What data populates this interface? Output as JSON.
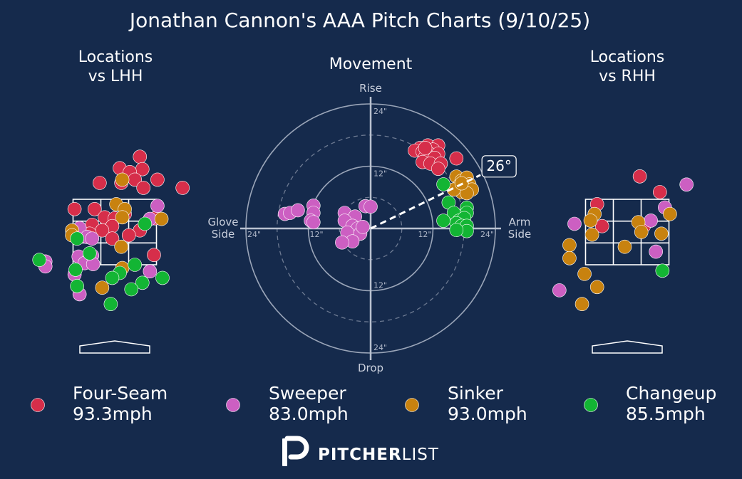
{
  "chart_data": {
    "type": "scatter",
    "title": "Jonathan Cannon's AAA Pitch Charts (9/10/25)",
    "colors": {
      "background": "#152a4c",
      "Four-Seam": "#d62e4a",
      "Sweeper": "#cc5fc2",
      "Sinker": "#c8820f",
      "Changeup": "#13b534"
    },
    "pitch_types": [
      {
        "name": "Four-Seam",
        "speed": "93.3mph",
        "color": "#d62e4a"
      },
      {
        "name": "Sweeper",
        "speed": "83.0mph",
        "color": "#cc5fc2"
      },
      {
        "name": "Sinker",
        "speed": "93.0mph",
        "color": "#c8820f"
      },
      {
        "name": "Changeup",
        "speed": "85.5mph",
        "color": "#13b534"
      }
    ],
    "locations_lhh": {
      "title_line1": "Locations",
      "title_line2": "vs LHH",
      "xlim": [
        -1.8,
        1.8
      ],
      "ylim": [
        0,
        5
      ],
      "strike_zone": {
        "x": [
          -0.83,
          0.83
        ],
        "z": [
          1.5,
          3.5
        ]
      },
      "points": [
        {
          "type": "Four-Seam",
          "x": 0.5,
          "z": 4.8
        },
        {
          "type": "Four-Seam",
          "x": 0.1,
          "z": 4.45
        },
        {
          "type": "Four-Seam",
          "x": 0.55,
          "z": 4.42
        },
        {
          "type": "Four-Seam",
          "x": 0.3,
          "z": 4.33
        },
        {
          "type": "Four-Seam",
          "x": 0.4,
          "z": 4.1
        },
        {
          "type": "Four-Seam",
          "x": 0.85,
          "z": 4.1
        },
        {
          "type": "Four-Seam",
          "x": -0.3,
          "z": 4.0
        },
        {
          "type": "Four-Seam",
          "x": 0.13,
          "z": 4.0
        },
        {
          "type": "Four-Seam",
          "x": 1.35,
          "z": 3.85
        },
        {
          "type": "Four-Seam",
          "x": 0.57,
          "z": 3.85
        },
        {
          "type": "Four-Seam",
          "x": -0.8,
          "z": 3.2
        },
        {
          "type": "Four-Seam",
          "x": -0.4,
          "z": 3.2
        },
        {
          "type": "Four-Seam",
          "x": 0.2,
          "z": 3.05
        },
        {
          "type": "Four-Seam",
          "x": -0.2,
          "z": 2.95
        },
        {
          "type": "Four-Seam",
          "x": 0.0,
          "z": 2.92
        },
        {
          "type": "Four-Seam",
          "x": 0.8,
          "z": 2.92
        },
        {
          "type": "Four-Seam",
          "x": -0.45,
          "z": 2.72
        },
        {
          "type": "Four-Seam",
          "x": -0.05,
          "z": 2.68
        },
        {
          "type": "Four-Seam",
          "x": -0.25,
          "z": 2.55
        },
        {
          "type": "Four-Seam",
          "x": -0.5,
          "z": 2.45
        },
        {
          "type": "Four-Seam",
          "x": 0.5,
          "z": 2.55
        },
        {
          "type": "Four-Seam",
          "x": 0.28,
          "z": 2.4
        },
        {
          "type": "Four-Seam",
          "x": -0.05,
          "z": 2.3
        },
        {
          "type": "Four-Seam",
          "x": 0.78,
          "z": 1.8
        },
        {
          "type": "Sweeper",
          "x": 0.85,
          "z": 3.3
        },
        {
          "type": "Sweeper",
          "x": 0.7,
          "z": 2.9
        },
        {
          "type": "Sweeper",
          "x": -0.7,
          "z": 2.62
        },
        {
          "type": "Sweeper",
          "x": -0.55,
          "z": 2.35
        },
        {
          "type": "Sweeper",
          "x": -0.45,
          "z": 2.3
        },
        {
          "type": "Sweeper",
          "x": -0.72,
          "z": 1.75
        },
        {
          "type": "Sweeper",
          "x": -0.5,
          "z": 1.75
        },
        {
          "type": "Sweeper",
          "x": -0.45,
          "z": 1.78
        },
        {
          "type": "Sweeper",
          "x": -0.6,
          "z": 1.55
        },
        {
          "type": "Sweeper",
          "x": -0.43,
          "z": 1.52
        },
        {
          "type": "Sweeper",
          "x": -1.38,
          "z": 1.6
        },
        {
          "type": "Sweeper",
          "x": -1.38,
          "z": 1.45
        },
        {
          "type": "Sweeper",
          "x": -0.8,
          "z": 1.2
        },
        {
          "type": "Sweeper",
          "x": 0.7,
          "z": 1.3
        },
        {
          "type": "Sweeper",
          "x": -0.7,
          "z": 0.6
        },
        {
          "type": "Sinker",
          "x": 0.15,
          "z": 4.1
        },
        {
          "type": "Sinker",
          "x": 0.03,
          "z": 3.35
        },
        {
          "type": "Sinker",
          "x": 0.2,
          "z": 3.2
        },
        {
          "type": "Sinker",
          "x": 0.15,
          "z": 2.95
        },
        {
          "type": "Sinker",
          "x": 0.93,
          "z": 2.9
        },
        {
          "type": "Sinker",
          "x": -0.85,
          "z": 2.55
        },
        {
          "type": "Sinker",
          "x": -0.85,
          "z": 2.4
        },
        {
          "type": "Sinker",
          "x": 0.13,
          "z": 2.05
        },
        {
          "type": "Sinker",
          "x": 0.15,
          "z": 1.4
        },
        {
          "type": "Sinker",
          "x": -0.25,
          "z": 0.8
        },
        {
          "type": "Changeup",
          "x": 0.6,
          "z": 2.75
        },
        {
          "type": "Changeup",
          "x": -0.75,
          "z": 2.3
        },
        {
          "type": "Changeup",
          "x": -0.5,
          "z": 1.85
        },
        {
          "type": "Changeup",
          "x": -1.5,
          "z": 1.65
        },
        {
          "type": "Changeup",
          "x": 0.4,
          "z": 1.5
        },
        {
          "type": "Changeup",
          "x": -0.78,
          "z": 1.35
        },
        {
          "type": "Changeup",
          "x": 0.1,
          "z": 1.25
        },
        {
          "type": "Changeup",
          "x": -0.05,
          "z": 1.1
        },
        {
          "type": "Changeup",
          "x": 0.95,
          "z": 1.1
        },
        {
          "type": "Changeup",
          "x": 0.55,
          "z": 0.95
        },
        {
          "type": "Changeup",
          "x": -0.75,
          "z": 0.85
        },
        {
          "type": "Changeup",
          "x": 0.33,
          "z": 0.75
        },
        {
          "type": "Changeup",
          "x": -0.08,
          "z": 0.3
        }
      ]
    },
    "locations_rhh": {
      "title_line1": "Locations",
      "title_line2": "vs RHH",
      "xlim": [
        -1.8,
        1.8
      ],
      "ylim": [
        0,
        5
      ],
      "strike_zone": {
        "x": [
          -0.83,
          0.83
        ],
        "z": [
          1.5,
          3.5
        ]
      },
      "points": [
        {
          "type": "Four-Seam",
          "x": 0.25,
          "z": 4.2
        },
        {
          "type": "Four-Seam",
          "x": 0.65,
          "z": 3.72
        },
        {
          "type": "Four-Seam",
          "x": -0.6,
          "z": 3.35
        },
        {
          "type": "Four-Seam",
          "x": -0.5,
          "z": 2.68
        },
        {
          "type": "Four-Seam",
          "x": 0.33,
          "z": 2.68
        },
        {
          "type": "Sweeper",
          "x": 1.18,
          "z": 3.95
        },
        {
          "type": "Sweeper",
          "x": 0.75,
          "z": 3.25
        },
        {
          "type": "Sweeper",
          "x": -1.05,
          "z": 2.75
        },
        {
          "type": "Sweeper",
          "x": 0.47,
          "z": 2.85
        },
        {
          "type": "Sweeper",
          "x": 0.57,
          "z": 1.9
        },
        {
          "type": "Sweeper",
          "x": -1.35,
          "z": 0.72
        },
        {
          "type": "Sinker",
          "x": -0.65,
          "z": 3.05
        },
        {
          "type": "Sinker",
          "x": 0.85,
          "z": 3.05
        },
        {
          "type": "Sinker",
          "x": -0.73,
          "z": 2.85
        },
        {
          "type": "Sinker",
          "x": 0.22,
          "z": 2.8
        },
        {
          "type": "Sinker",
          "x": 0.28,
          "z": 2.5
        },
        {
          "type": "Sinker",
          "x": 0.68,
          "z": 2.45
        },
        {
          "type": "Sinker",
          "x": -0.7,
          "z": 2.42
        },
        {
          "type": "Sinker",
          "x": -1.15,
          "z": 2.1
        },
        {
          "type": "Sinker",
          "x": -0.05,
          "z": 2.05
        },
        {
          "type": "Sinker",
          "x": -1.15,
          "z": 1.7
        },
        {
          "type": "Sinker",
          "x": -0.85,
          "z": 1.22
        },
        {
          "type": "Sinker",
          "x": -0.6,
          "z": 0.82
        },
        {
          "type": "Sinker",
          "x": -0.9,
          "z": 0.3
        },
        {
          "type": "Changeup",
          "x": 0.7,
          "z": 1.32
        }
      ]
    },
    "movement": {
      "title": "Movement",
      "label_top": "Rise",
      "label_bottom": "Drop",
      "label_left_line1": "Glove",
      "label_left_line2": "Side",
      "label_right_line1": "Arm",
      "label_right_line2": "Side",
      "rings": [
        {
          "inches": 6,
          "style": "dashed",
          "labels": []
        },
        {
          "inches": 12,
          "style": "solid",
          "labels": [
            "12\"",
            "12\"",
            "12\"",
            "12\""
          ]
        },
        {
          "inches": 18,
          "style": "dashed",
          "labels": []
        },
        {
          "inches": 24,
          "style": "solid",
          "labels": [
            "24\"",
            "24\"",
            "24\"",
            "24\""
          ]
        }
      ],
      "max_inches": 24,
      "arm_angle": {
        "degrees": 26,
        "label": "26°"
      },
      "points": [
        {
          "type": "Four-Seam",
          "h": 9.5,
          "v": 15.5
        },
        {
          "type": "Four-Seam",
          "h": 11.0,
          "v": 16.0
        },
        {
          "type": "Four-Seam",
          "h": 13.0,
          "v": 16.0
        },
        {
          "type": "Four-Seam",
          "h": 8.5,
          "v": 15.0
        },
        {
          "type": "Four-Seam",
          "h": 10.0,
          "v": 14.8
        },
        {
          "type": "Four-Seam",
          "h": 12.0,
          "v": 15.2
        },
        {
          "type": "Four-Seam",
          "h": 11.5,
          "v": 14.3
        },
        {
          "type": "Four-Seam",
          "h": 13.0,
          "v": 14.4
        },
        {
          "type": "Four-Seam",
          "h": 10.5,
          "v": 13.8
        },
        {
          "type": "Four-Seam",
          "h": 12.3,
          "v": 13.6
        },
        {
          "type": "Four-Seam",
          "h": 10.0,
          "v": 12.8
        },
        {
          "type": "Four-Seam",
          "h": 11.5,
          "v": 12.5
        },
        {
          "type": "Four-Seam",
          "h": 13.5,
          "v": 12.5
        },
        {
          "type": "Four-Seam",
          "h": 16.5,
          "v": 13.5
        },
        {
          "type": "Four-Seam",
          "h": 13.0,
          "v": 11.5
        },
        {
          "type": "Four-Seam",
          "h": 10.5,
          "v": 15.5
        },
        {
          "type": "Sinker",
          "h": 16.5,
          "v": 10.0
        },
        {
          "type": "Sinker",
          "h": 17.5,
          "v": 9.2
        },
        {
          "type": "Sinker",
          "h": 18.5,
          "v": 9.8
        },
        {
          "type": "Sinker",
          "h": 19.0,
          "v": 8.5
        },
        {
          "type": "Sinker",
          "h": 17.0,
          "v": 8.2
        },
        {
          "type": "Sinker",
          "h": 18.0,
          "v": 7.8
        },
        {
          "type": "Sinker",
          "h": 19.5,
          "v": 7.5
        },
        {
          "type": "Sinker",
          "h": 17.5,
          "v": 7.0
        },
        {
          "type": "Sinker",
          "h": 18.5,
          "v": 6.8
        },
        {
          "type": "Sinker",
          "h": 16.0,
          "v": 7.5
        },
        {
          "type": "Sinker",
          "h": 17.5,
          "v": 8.7
        },
        {
          "type": "Changeup",
          "h": 14.0,
          "v": 8.5
        },
        {
          "type": "Changeup",
          "h": 15.0,
          "v": 5.0
        },
        {
          "type": "Changeup",
          "h": 16.0,
          "v": 3.0
        },
        {
          "type": "Changeup",
          "h": 17.0,
          "v": 1.5
        },
        {
          "type": "Changeup",
          "h": 18.5,
          "v": 4.0
        },
        {
          "type": "Changeup",
          "h": 18.5,
          "v": 3.0
        },
        {
          "type": "Changeup",
          "h": 18.0,
          "v": 2.0
        },
        {
          "type": "Changeup",
          "h": 16.5,
          "v": 1.0
        },
        {
          "type": "Changeup",
          "h": 17.5,
          "v": 0.5
        },
        {
          "type": "Changeup",
          "h": 18.5,
          "v": 0.5
        },
        {
          "type": "Changeup",
          "h": 18.5,
          "v": -0.5
        },
        {
          "type": "Changeup",
          "h": 16.5,
          "v": -0.3
        },
        {
          "type": "Changeup",
          "h": 14.0,
          "v": 1.5
        },
        {
          "type": "Sweeper",
          "h": -16.5,
          "v": 2.8
        },
        {
          "type": "Sweeper",
          "h": -15.5,
          "v": 3.0
        },
        {
          "type": "Sweeper",
          "h": -14.0,
          "v": 3.5
        },
        {
          "type": "Sweeper",
          "h": -11.0,
          "v": 4.4
        },
        {
          "type": "Sweeper",
          "h": -11.0,
          "v": 3.0
        },
        {
          "type": "Sweeper",
          "h": -11.5,
          "v": 1.5
        },
        {
          "type": "Sweeper",
          "h": -11.0,
          "v": 1.2
        },
        {
          "type": "Sweeper",
          "h": -5.0,
          "v": 3.0
        },
        {
          "type": "Sweeper",
          "h": -3.0,
          "v": 2.3
        },
        {
          "type": "Sweeper",
          "h": -1.0,
          "v": 4.3
        },
        {
          "type": "Sweeper",
          "h": 0.0,
          "v": 4.2
        },
        {
          "type": "Sweeper",
          "h": -5.0,
          "v": 1.5
        },
        {
          "type": "Sweeper",
          "h": -3.5,
          "v": 0.5
        },
        {
          "type": "Sweeper",
          "h": -2.5,
          "v": 0.0
        },
        {
          "type": "Sweeper",
          "h": -4.5,
          "v": -0.8
        },
        {
          "type": "Sweeper",
          "h": -2.0,
          "v": -1.0
        },
        {
          "type": "Sweeper",
          "h": -3.5,
          "v": -2.5
        },
        {
          "type": "Sweeper",
          "h": -5.5,
          "v": -2.7
        },
        {
          "type": "Sweeper",
          "h": -1.5,
          "v": 0.3
        }
      ]
    },
    "brand": {
      "bold": "PITCHER",
      "light": "LIST"
    }
  }
}
